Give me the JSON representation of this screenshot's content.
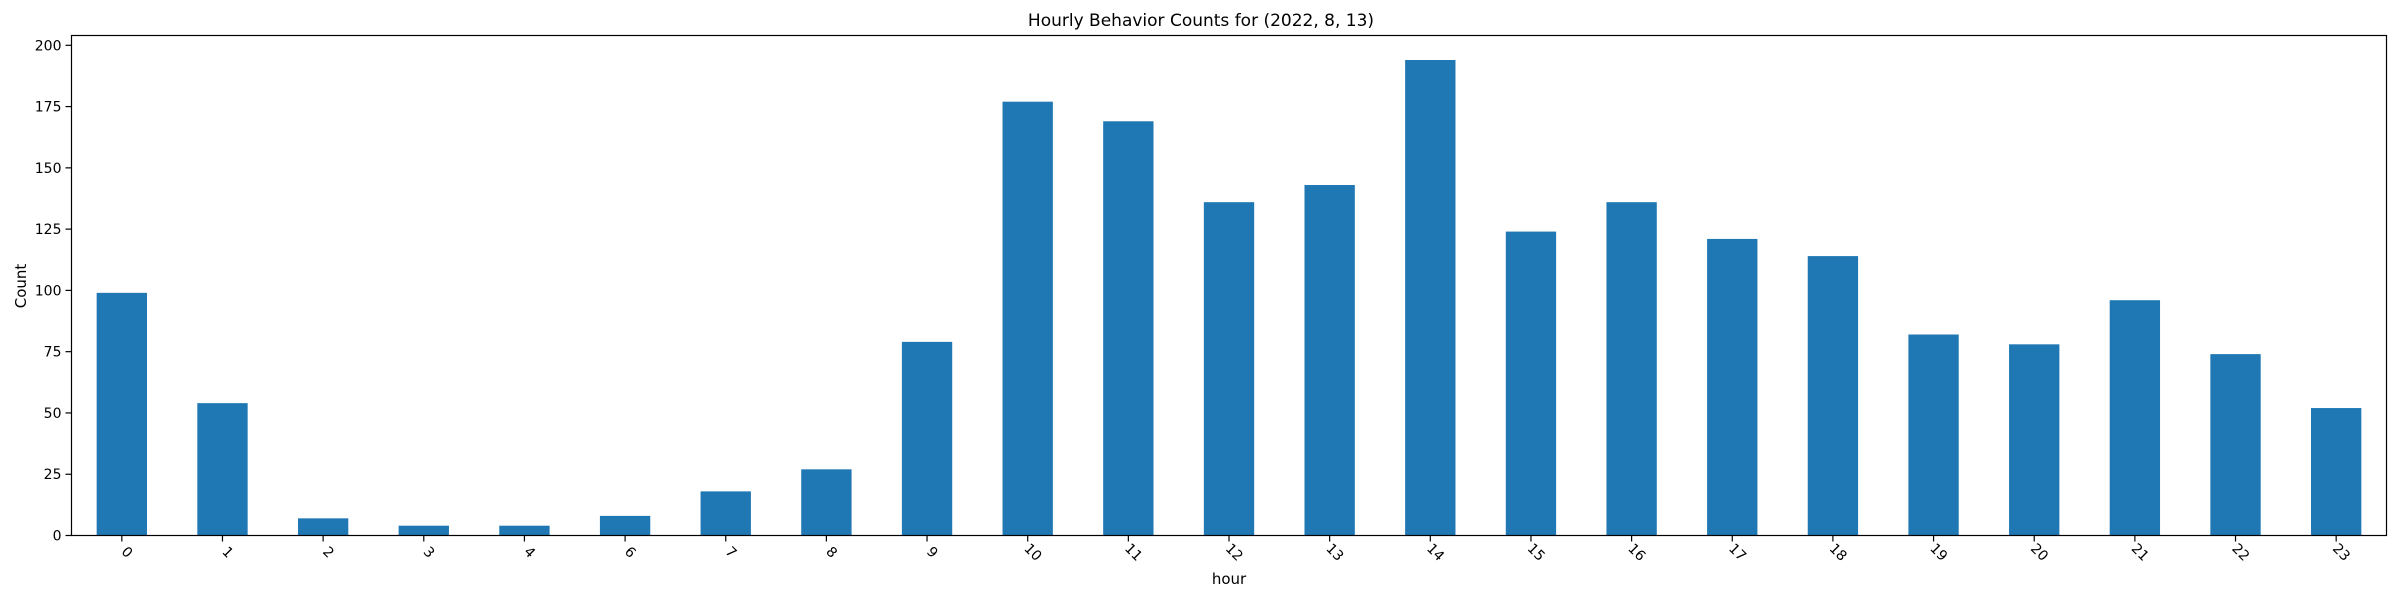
{
  "chart_data": {
    "type": "bar",
    "title": "Hourly Behavior Counts for (2022, 8, 13)",
    "xlabel": "hour",
    "ylabel": "Count",
    "categories": [
      "0",
      "1",
      "2",
      "3",
      "4",
      "6",
      "7",
      "8",
      "9",
      "10",
      "11",
      "12",
      "13",
      "14",
      "15",
      "16",
      "17",
      "18",
      "19",
      "20",
      "21",
      "22",
      "23"
    ],
    "values": [
      99,
      54,
      7,
      4,
      4,
      8,
      18,
      27,
      79,
      177,
      169,
      136,
      143,
      194,
      124,
      136,
      121,
      114,
      82,
      78,
      96,
      74,
      52
    ],
    "ylim": [
      0,
      204
    ],
    "yticks": [
      0,
      25,
      50,
      75,
      100,
      125,
      150,
      175,
      200
    ],
    "ytick_labels": [
      "0",
      "25",
      "50",
      "75",
      "100",
      "125",
      "150",
      "175",
      "200"
    ],
    "grid": false,
    "legend": "none",
    "bar_color": "#1f77b4",
    "xtick_rotation": 45
  }
}
